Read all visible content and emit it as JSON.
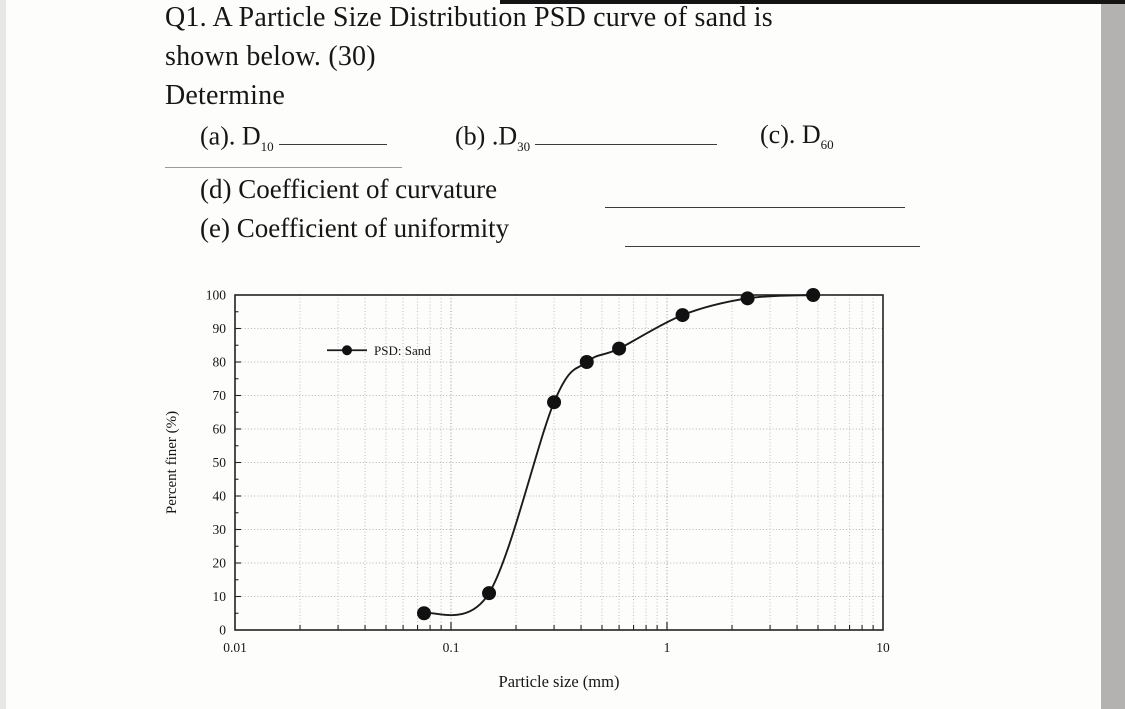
{
  "question": {
    "line1": "Q1. A Particle Size Distribution PSD curve of sand is",
    "line2": "shown below. (30)",
    "line3": "Determine"
  },
  "parts": {
    "a": {
      "label": "(a). D",
      "sub": "10"
    },
    "b": {
      "label": "(b) .D",
      "sub": "30"
    },
    "c": {
      "label": "(c). D",
      "sub": "60"
    },
    "d": {
      "label": "(d) Coefficient of curvature"
    },
    "e": {
      "label": "(e) Coefficient of uniformity"
    }
  },
  "chart_data": {
    "type": "line",
    "title": "",
    "xlabel": "Particle size (mm)",
    "ylabel": "Percent finer (%)",
    "x_scale": "log",
    "xlim": [
      0.01,
      10
    ],
    "ylim": [
      0,
      100
    ],
    "x_ticks": [
      0.01,
      0.1,
      1,
      10
    ],
    "y_ticks": [
      0,
      10,
      20,
      30,
      40,
      50,
      60,
      70,
      80,
      90,
      100
    ],
    "grid": true,
    "legend": {
      "position": "upper-left",
      "label": "PSD: Sand"
    },
    "line_color": "#1b1b1b",
    "marker_color": "#111111",
    "series": [
      {
        "name": "PSD: Sand",
        "marker": "circle",
        "points": [
          {
            "x": 0.075,
            "y": 5
          },
          {
            "x": 0.15,
            "y": 11
          },
          {
            "x": 0.3,
            "y": 68
          },
          {
            "x": 0.425,
            "y": 80
          },
          {
            "x": 0.6,
            "y": 84
          },
          {
            "x": 1.18,
            "y": 94
          },
          {
            "x": 2.36,
            "y": 99
          },
          {
            "x": 4.75,
            "y": 100
          }
        ]
      }
    ]
  }
}
